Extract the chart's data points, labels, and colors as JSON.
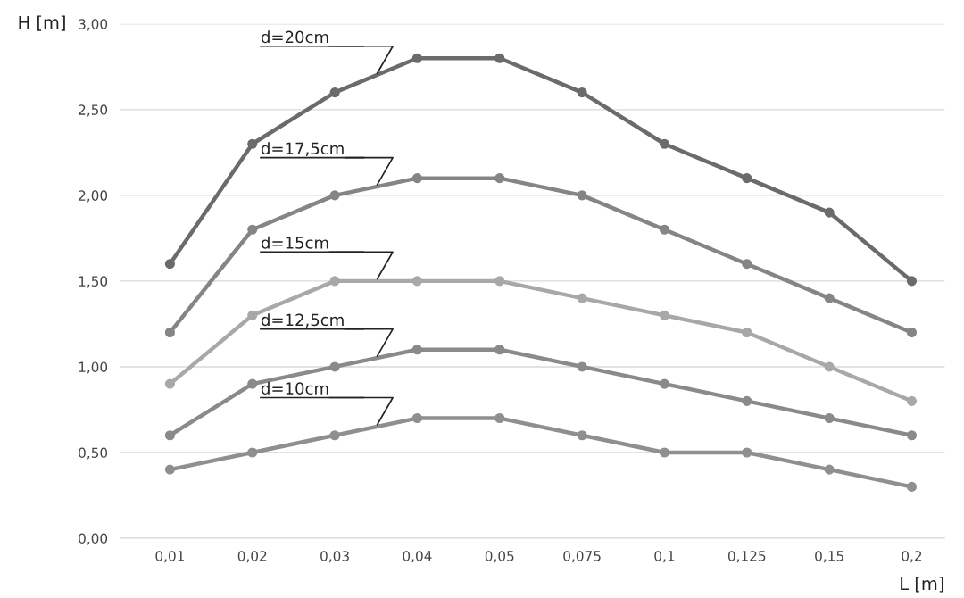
{
  "chart_data": {
    "type": "line",
    "xlabel": "L [m]",
    "ylabel": "H [m]",
    "categories": [
      "0,01",
      "0,02",
      "0,03",
      "0,04",
      "0,05",
      "0,075",
      "0,1",
      "0,125",
      "0,15",
      "0,2"
    ],
    "series": [
      {
        "name": "d=20cm",
        "color": "#6b6b6b",
        "values": [
          1.6,
          2.3,
          2.6,
          2.8,
          2.8,
          2.6,
          2.3,
          2.1,
          1.9,
          1.5
        ]
      },
      {
        "name": "d=17,5cm",
        "color": "#858585",
        "values": [
          1.2,
          1.8,
          2.0,
          2.1,
          2.1,
          2.0,
          1.8,
          1.6,
          1.4,
          1.2
        ]
      },
      {
        "name": "d=15cm",
        "color": "#a8a8a8",
        "values": [
          0.9,
          1.3,
          1.5,
          1.5,
          1.5,
          1.4,
          1.3,
          1.2,
          1.0,
          0.8
        ]
      },
      {
        "name": "d=12,5cm",
        "color": "#8a8a8a",
        "values": [
          0.6,
          0.9,
          1.0,
          1.1,
          1.1,
          1.0,
          0.9,
          0.8,
          0.7,
          0.6
        ]
      },
      {
        "name": "d=10cm",
        "color": "#8f8f8f",
        "values": [
          0.4,
          0.5,
          0.6,
          0.7,
          0.7,
          0.6,
          0.5,
          0.5,
          0.4,
          0.3
        ]
      }
    ],
    "ylim": [
      0,
      3
    ],
    "yticks": [
      {
        "value": 0,
        "label": "0,00"
      },
      {
        "value": 0.5,
        "label": "0,50"
      },
      {
        "value": 1,
        "label": "1,00"
      },
      {
        "value": 1.5,
        "label": "1,50"
      },
      {
        "value": 2,
        "label": "2,00"
      },
      {
        "value": 2.5,
        "label": "2,50"
      },
      {
        "value": 3,
        "label": "3,00"
      }
    ],
    "grid": "y",
    "legend": false,
    "marker": "circle",
    "line_style": "solid"
  }
}
